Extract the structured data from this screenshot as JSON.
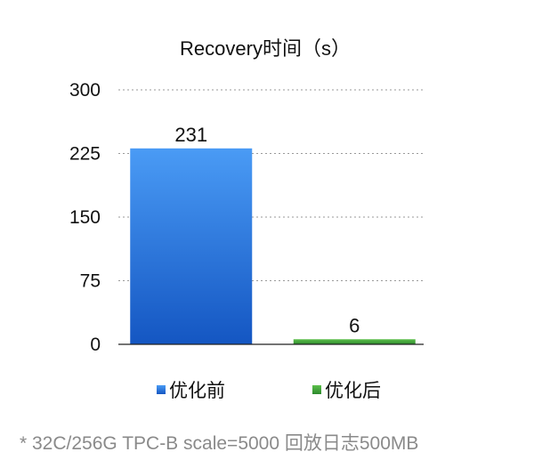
{
  "chart_data": {
    "type": "bar",
    "title": "Recovery时间（s）",
    "categories": [
      "优化前",
      "优化后"
    ],
    "values": [
      231,
      6
    ],
    "colors": [
      "#2a78e4",
      "#3aa33a"
    ],
    "gradient_top": [
      "#4a9bf5",
      "#5cc04a"
    ],
    "gradient_bottom": [
      "#1456c2",
      "#2d8a2d"
    ],
    "ylim": [
      0,
      300
    ],
    "yticks": [
      "0",
      "75",
      "150",
      "225",
      "300"
    ],
    "ytick_values": [
      0,
      75,
      150,
      225,
      300
    ],
    "data_labels": [
      "231",
      "6"
    ],
    "grid": "dotted",
    "legend": "bottom",
    "xlabel": "",
    "ylabel": ""
  },
  "footnote": "* 32C/256G TPC-B scale=5000 回放日志500MB"
}
